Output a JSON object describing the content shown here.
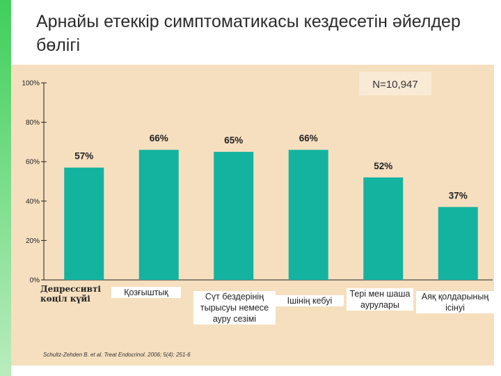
{
  "title": "Арнайы етеккір симптоматикасы кездесетін әйелдер бөлігі",
  "accent_color": "#3fcf5a",
  "chart_data": {
    "type": "bar",
    "categories": [
      "Депрессивті көңіл күйі",
      "Қозғыштық",
      "Сүт бездерінің тырысуы немесе ауру сезімі",
      "Ішінің кебуі",
      "Тері мен шаша аурулары",
      "Аяқ қолдарының ісінуі"
    ],
    "values": [
      57,
      66,
      65,
      66,
      52,
      37
    ],
    "value_labels": [
      "57%",
      "66%",
      "65%",
      "66%",
      "52%",
      "37%"
    ],
    "ylim": [
      0,
      100
    ],
    "y_ticks": [
      "0%",
      "20%",
      "40%",
      "60%",
      "80%",
      "100%"
    ],
    "annotation": "N=10,947",
    "bar_color": "#14b3a0",
    "background_color": "#f6dfbf",
    "grid": false,
    "citation": "Schultz-Zehden B. et al. Treat Endocrinol. 2006; 5(4): 251-6"
  }
}
